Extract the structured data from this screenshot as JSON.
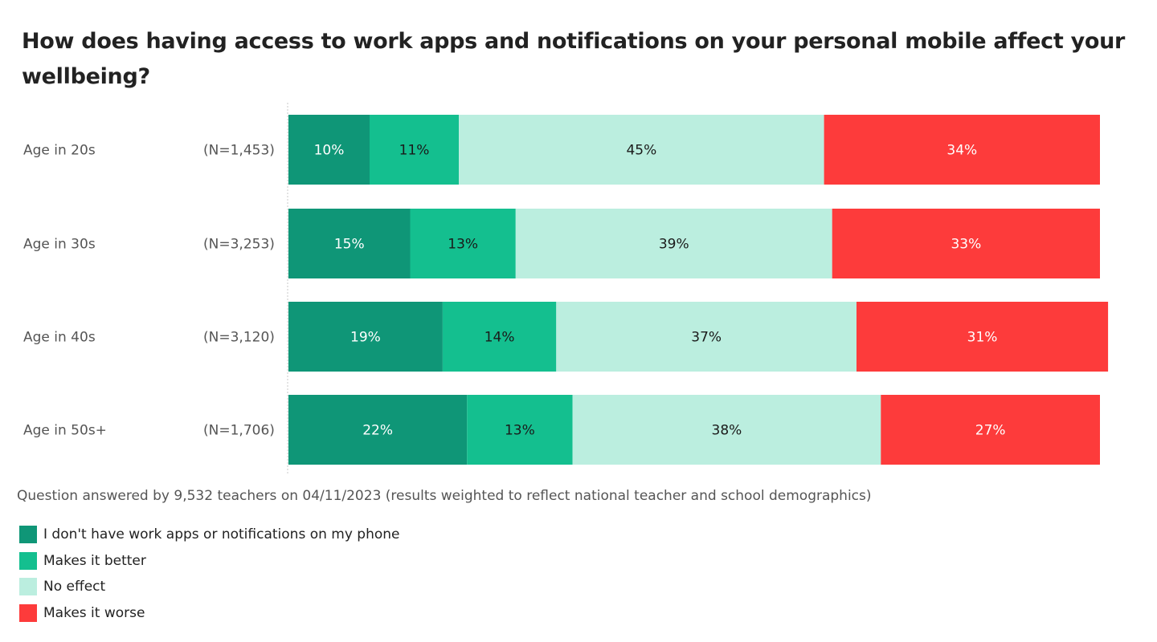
{
  "chart_data": {
    "type": "bar",
    "orientation": "horizontal",
    "stacked": true,
    "title": "How does having access to work apps and notifications on your personal mobile affect your wellbeing?",
    "categories": [
      "Age in 20s",
      "Age in 30s",
      "Age in 40s",
      "Age in 50s+"
    ],
    "sample_sizes": [
      "(N=1,453)",
      "(N=3,253)",
      "(N=3,120)",
      "(N=1,706)"
    ],
    "series": [
      {
        "name": "I don't have work apps or notifications on my phone",
        "color": "#0f9677",
        "label_color": "#ffffff",
        "values": [
          10,
          15,
          19,
          22
        ]
      },
      {
        "name": "Makes it better",
        "color": "#14bf8f",
        "label_color": "#1a1a1a",
        "values": [
          11,
          13,
          14,
          13
        ]
      },
      {
        "name": "No effect",
        "color": "#bbeedf",
        "label_color": "#1a1a1a",
        "values": [
          45,
          39,
          37,
          38
        ]
      },
      {
        "name": "Makes it worse",
        "color": "#fd3b3b",
        "label_color": "#ffffff",
        "values": [
          34,
          33,
          31,
          27
        ]
      }
    ],
    "value_suffix": "%",
    "xlim": [
      0,
      100
    ],
    "legend_position": "bottom-left",
    "grid": false
  },
  "note": "Question answered by 9,532 teachers on 04/11/2023 (results weighted to reflect national teacher and school demographics)"
}
